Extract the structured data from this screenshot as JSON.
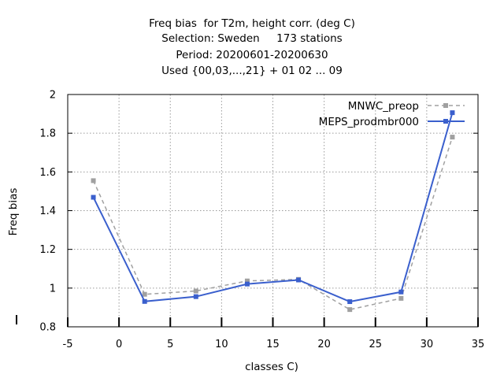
{
  "chart_data": {
    "type": "line",
    "title_lines": [
      "Freq bias  for T2m, height corr. (deg C)",
      "Selection: Sweden     173 stations",
      "Period: 20200601-20200630",
      "Used {00,03,...,21} + 01 02 ... 09"
    ],
    "xlabel": "classes C)",
    "ylabel": "Freq bias",
    "xlim": [
      -5,
      35
    ],
    "ylim": [
      0.8,
      2.0
    ],
    "xticks": [
      -5,
      0,
      5,
      10,
      15,
      20,
      25,
      30,
      35
    ],
    "yticks": [
      0.8,
      1.0,
      1.2,
      1.4,
      1.6,
      1.8,
      2.0
    ],
    "xtick_labels": [
      "-5",
      "0",
      "5",
      "10",
      "15",
      "20",
      "25",
      "30",
      "35"
    ],
    "ytick_labels": [
      "0.8",
      "1",
      "1.2",
      "1.4",
      "1.6",
      "1.8",
      "2"
    ],
    "grid": true,
    "legend_position": "top-right",
    "x": [
      -2.5,
      2.5,
      7.5,
      12.5,
      17.5,
      22.5,
      27.5,
      32.5
    ],
    "series": [
      {
        "name": "MNWC_preop",
        "color": "#a0a0a0",
        "style": "dashed",
        "values": [
          1.555,
          0.968,
          0.985,
          1.037,
          1.045,
          0.889,
          0.947,
          1.78
        ]
      },
      {
        "name": "MEPS_prodmbr000",
        "color": "#3a5fcd",
        "style": "solid",
        "values": [
          1.469,
          0.931,
          0.956,
          1.021,
          1.042,
          0.93,
          0.98,
          1.906
        ]
      }
    ]
  }
}
